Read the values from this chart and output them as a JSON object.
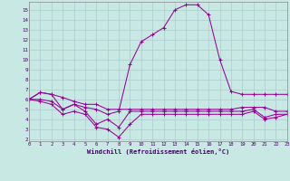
{
  "xlabel": "Windchill (Refroidissement éolien,°C)",
  "background_color": "#c8e8e4",
  "grid_color": "#aacccc",
  "line_color": "#990099",
  "xlim": [
    0,
    23
  ],
  "ylim": [
    1.8,
    15.8
  ],
  "xticks": [
    0,
    1,
    2,
    3,
    4,
    5,
    6,
    7,
    8,
    9,
    10,
    11,
    12,
    13,
    14,
    15,
    16,
    17,
    18,
    19,
    20,
    21,
    22,
    23
  ],
  "yticks": [
    2,
    3,
    4,
    5,
    6,
    7,
    8,
    9,
    10,
    11,
    12,
    13,
    14,
    15
  ],
  "series": [
    {
      "x": [
        0,
        1,
        2,
        3,
        4,
        5,
        6,
        7,
        8,
        9,
        10,
        11,
        12,
        13,
        14,
        15,
        16,
        17,
        18,
        19,
        20,
        21,
        22,
        23
      ],
      "y": [
        6.0,
        6.7,
        6.5,
        5.0,
        5.5,
        5.2,
        5.0,
        4.5,
        4.8,
        9.5,
        11.8,
        12.5,
        13.2,
        15.0,
        15.5,
        15.5,
        14.5,
        10.0,
        6.8,
        6.5,
        6.5,
        6.5,
        6.5,
        6.5
      ]
    },
    {
      "x": [
        0,
        1,
        2,
        3,
        4,
        5,
        6,
        7,
        8,
        9,
        10,
        11,
        12,
        13,
        14,
        15,
        16,
        17,
        18,
        19,
        20,
        21,
        22,
        23
      ],
      "y": [
        6.0,
        6.7,
        6.5,
        6.2,
        5.8,
        5.5,
        5.5,
        5.0,
        5.0,
        5.0,
        5.0,
        5.0,
        5.0,
        5.0,
        5.0,
        5.0,
        5.0,
        5.0,
        5.0,
        5.2,
        5.2,
        5.2,
        4.8,
        4.8
      ]
    },
    {
      "x": [
        0,
        1,
        2,
        3,
        4,
        5,
        6,
        7,
        8,
        9,
        10,
        11,
        12,
        13,
        14,
        15,
        16,
        17,
        18,
        19,
        20,
        21,
        22,
        23
      ],
      "y": [
        6.0,
        6.0,
        5.8,
        5.0,
        5.5,
        4.8,
        3.5,
        4.0,
        3.2,
        4.8,
        4.8,
        4.8,
        4.8,
        4.8,
        4.8,
        4.8,
        4.8,
        4.8,
        4.8,
        4.8,
        5.0,
        4.2,
        4.5,
        4.5
      ]
    },
    {
      "x": [
        0,
        1,
        2,
        3,
        4,
        5,
        6,
        7,
        8,
        9,
        10,
        11,
        12,
        13,
        14,
        15,
        16,
        17,
        18,
        19,
        20,
        21,
        22,
        23
      ],
      "y": [
        6.0,
        5.8,
        5.5,
        4.5,
        4.8,
        4.5,
        3.2,
        3.0,
        2.2,
        3.5,
        4.5,
        4.5,
        4.5,
        4.5,
        4.5,
        4.5,
        4.5,
        4.5,
        4.5,
        4.5,
        4.8,
        4.0,
        4.2,
        4.5
      ]
    }
  ]
}
